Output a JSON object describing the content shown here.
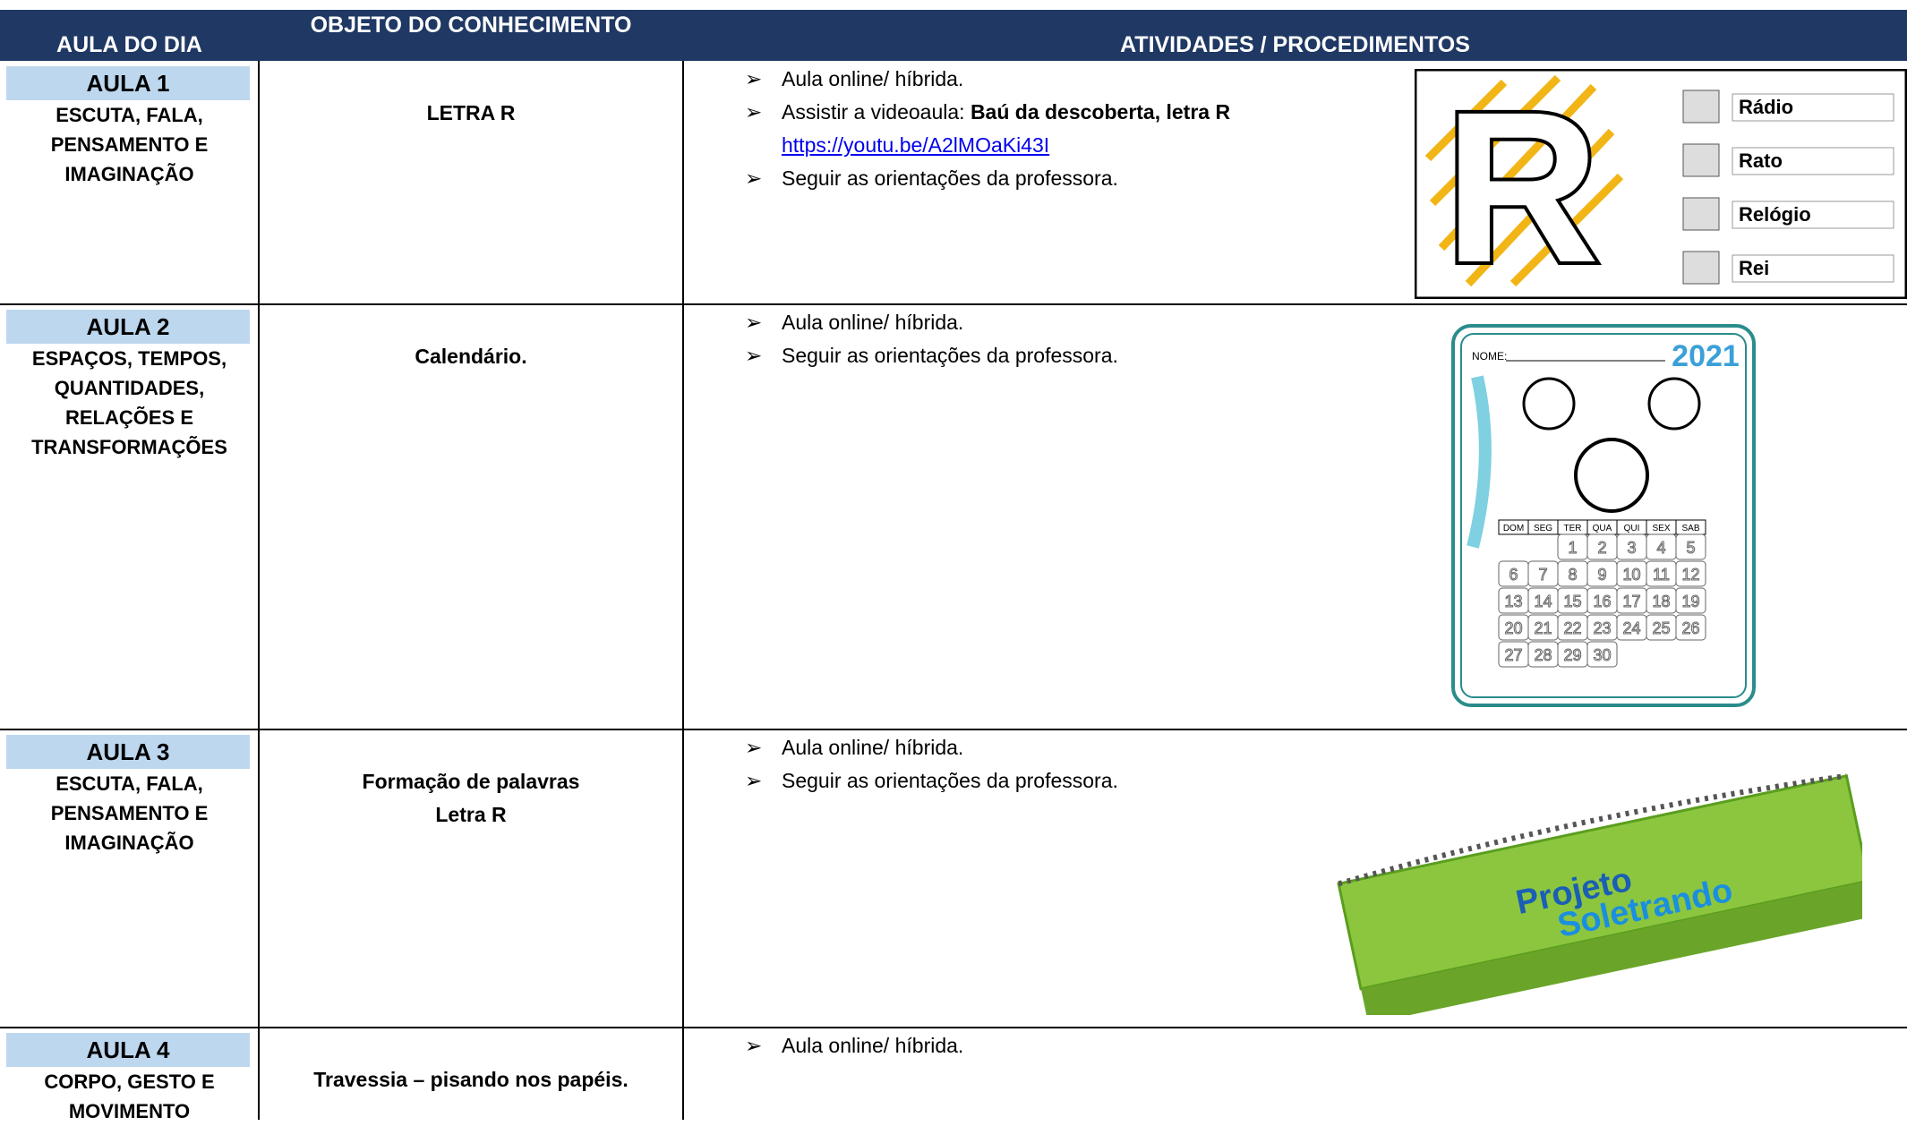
{
  "header": [
    "AULA DO DIA",
    "OBJETO DO CONHECIMENTO",
    "ATIVIDADES / PROCEDIMENTOS"
  ],
  "rows": [
    {
      "aula": "AULA 1",
      "area": [
        "ESCUTA, FALA,",
        "PENSAMENTO E",
        "IMAGINAÇÃO"
      ],
      "objeto": [
        "LETRA R"
      ],
      "atividades": [
        {
          "text": "Aula online/ híbrida."
        },
        {
          "text": "Assistir a videoaula: ",
          "bold": "Baú da descoberta, letra R",
          "link": "https://youtu.be/A2lMOaKi43I"
        },
        {
          "text": "Seguir as orientações da professora."
        }
      ]
    },
    {
      "aula": "AULA 2",
      "area": [
        "ESPAÇOS, TEMPOS,",
        "QUANTIDADES,",
        "RELAÇÕES E",
        "TRANSFORMAÇÕES"
      ],
      "objeto": [
        "Calendário."
      ],
      "atividades": [
        {
          "text": "Aula online/ híbrida."
        },
        {
          "text": "Seguir as orientações da professora."
        }
      ]
    },
    {
      "aula": "AULA 3",
      "area": [
        "ESCUTA, FALA,",
        "PENSAMENTO E",
        "IMAGINAÇÃO"
      ],
      "objeto": [
        "Formação de palavras",
        "Letra R"
      ],
      "atividades": [
        {
          "text": "Aula online/ híbrida."
        },
        {
          "text": "Seguir as orientações da professora."
        }
      ]
    },
    {
      "aula": "AULA 4",
      "area": [
        "CORPO, GESTO E",
        "MOVIMENTO"
      ],
      "objeto": [
        "Travessia – pisando nos papéis."
      ],
      "atividades": [
        {
          "text": "Aula online/ híbrida."
        }
      ]
    }
  ],
  "letter_card": {
    "letter": "R",
    "words": [
      "Rádio",
      "Rato",
      "Relógio",
      "Rei"
    ]
  },
  "calendar": {
    "name_label": "NOME:",
    "year": "2021",
    "weekdays": [
      "DOM",
      "SEG",
      "TER",
      "QUA",
      "QUI",
      "SEX",
      "SAB"
    ],
    "dates": [
      1,
      2,
      3,
      4,
      5,
      6,
      7,
      8,
      9,
      10,
      11,
      12,
      13,
      14,
      15,
      16,
      17,
      18,
      19,
      20,
      21,
      22,
      23,
      24,
      25,
      26,
      27,
      28,
      29,
      30
    ]
  },
  "soletrando": {
    "line1": "Projeto",
    "line2": "Soletrando"
  }
}
